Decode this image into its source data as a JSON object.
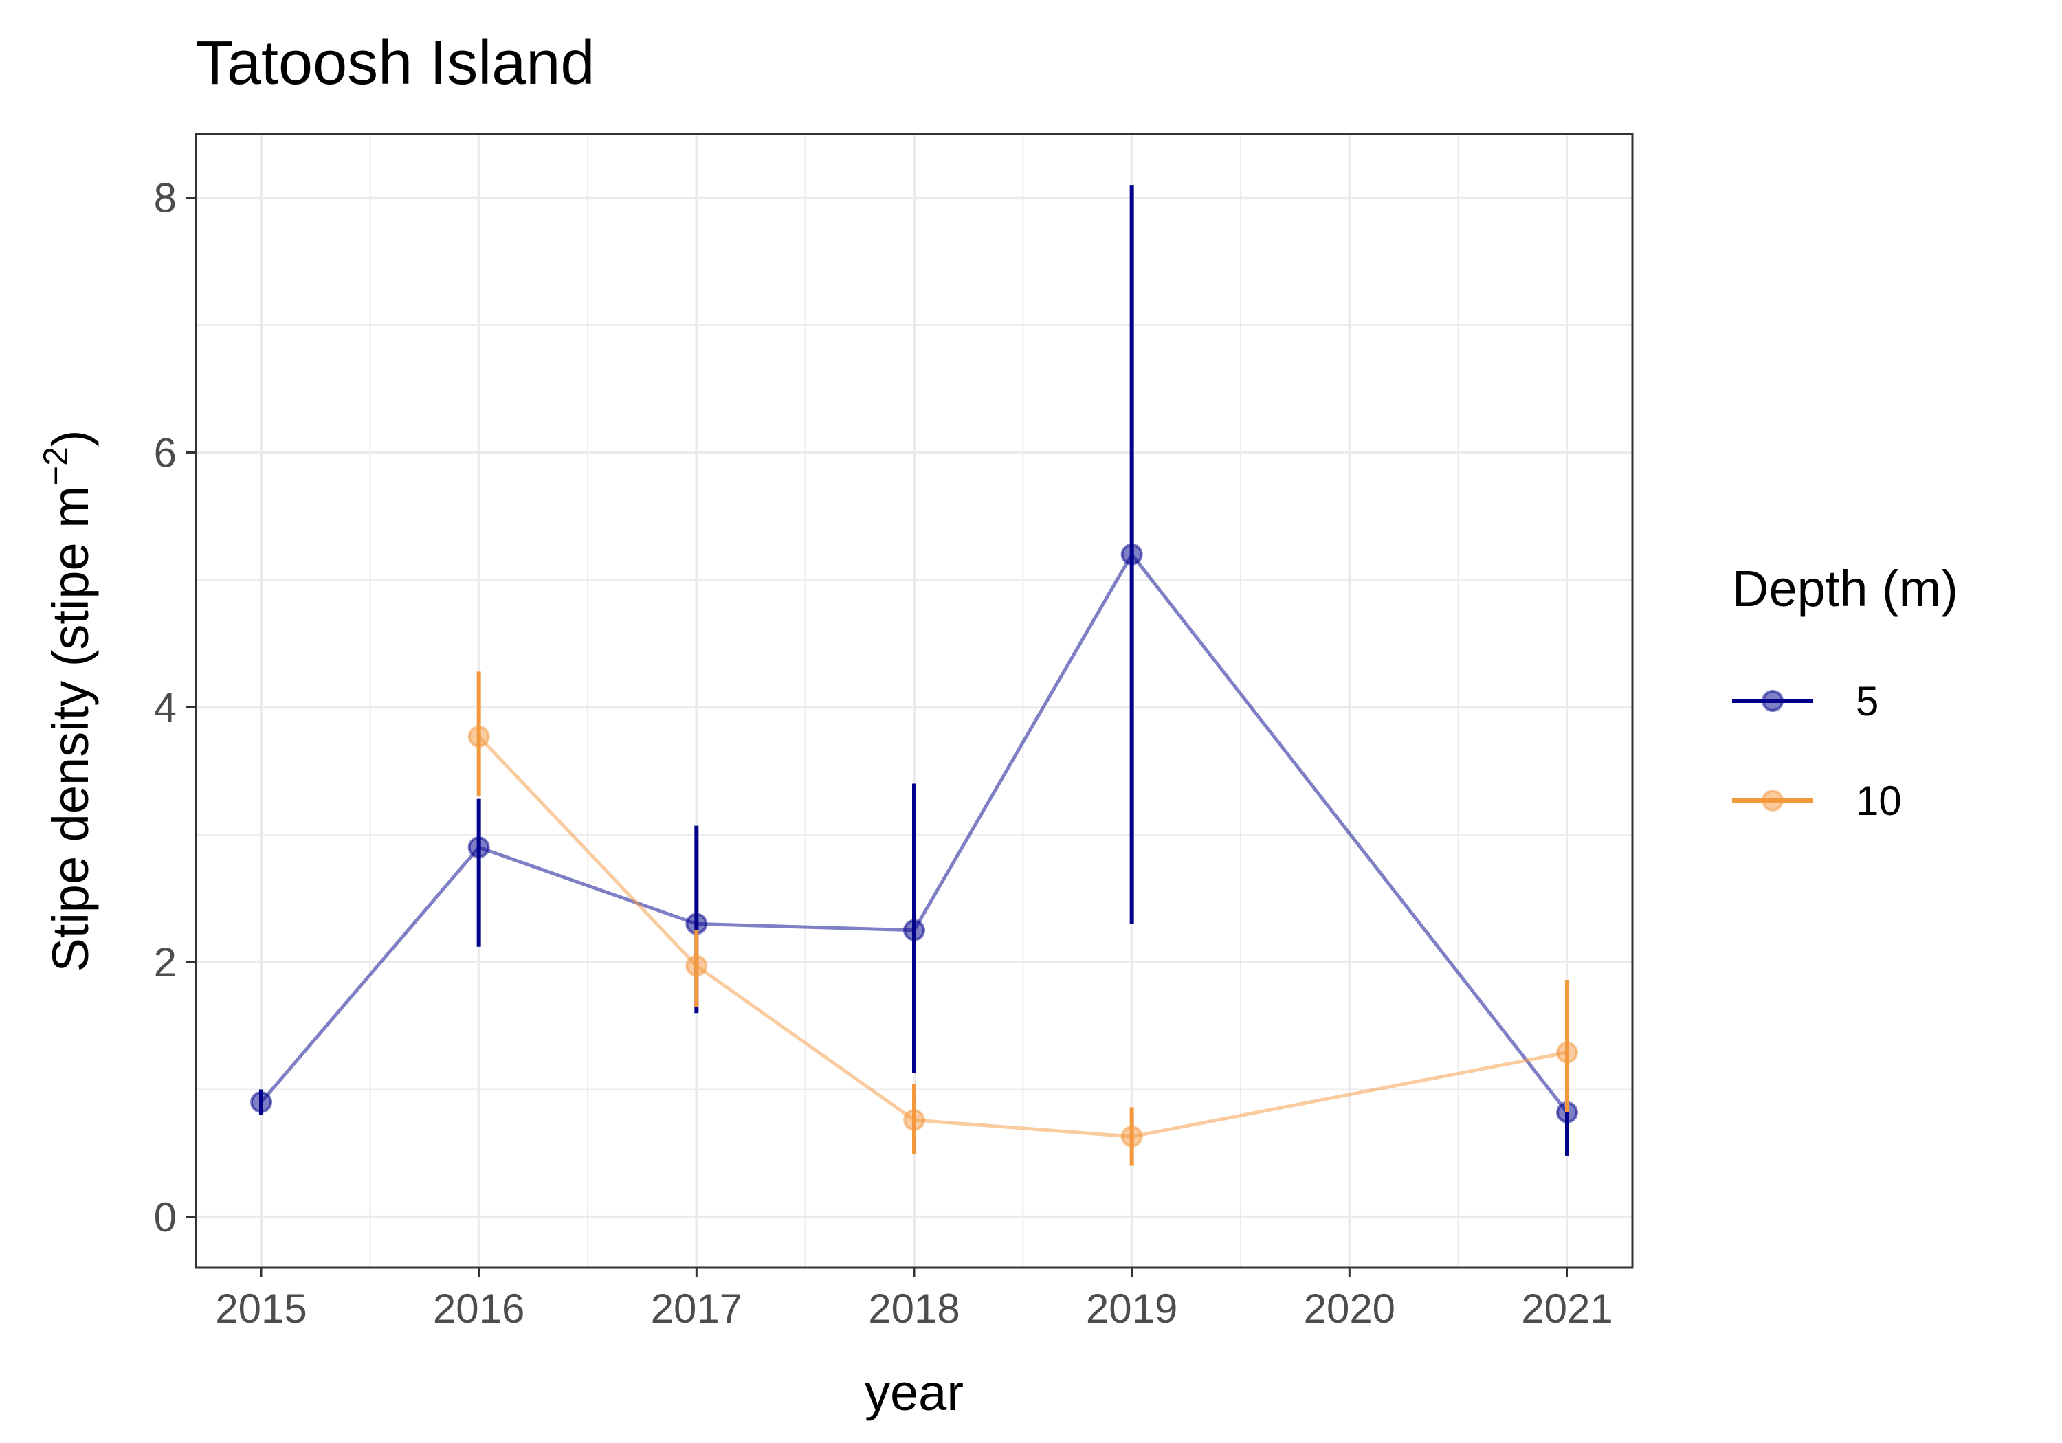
{
  "chart_data": {
    "type": "line",
    "title": "Tatoosh Island",
    "xlabel": "year",
    "ylabel": "Stipe density (stipe m",
    "ylabel_sup": "−2",
    "ylabel_close": ")",
    "xlim": [
      2014.7,
      2021.3
    ],
    "ylim": [
      -0.4,
      8.5
    ],
    "x_ticks": [
      2015,
      2016,
      2017,
      2018,
      2019,
      2020,
      2021
    ],
    "x_tick_labels": [
      "2015",
      "2016",
      "2017",
      "2018",
      "2019",
      "2020",
      "2021"
    ],
    "y_ticks": [
      0,
      2,
      4,
      6,
      8
    ],
    "y_tick_labels": [
      "0",
      "2",
      "4",
      "6",
      "8"
    ],
    "grid": true,
    "legend": {
      "title": "Depth (m)",
      "position": "right"
    },
    "series": [
      {
        "name": "5",
        "color": "#00008b",
        "x": [
          2015,
          2016,
          2017,
          2018,
          2019,
          2021
        ],
        "y": [
          0.9,
          2.9,
          2.3,
          2.25,
          5.2,
          0.82
        ],
        "y_lower": [
          0.8,
          2.12,
          1.6,
          1.13,
          2.3,
          0.48
        ],
        "y_upper": [
          1.0,
          3.28,
          3.07,
          3.4,
          8.1,
          1.15
        ]
      },
      {
        "name": "10",
        "color": "#f4983e",
        "x": [
          2016,
          2017,
          2018,
          2019,
          2021
        ],
        "y": [
          3.77,
          1.97,
          0.76,
          0.63,
          1.29
        ],
        "y_lower": [
          3.3,
          1.65,
          0.49,
          0.4,
          0.82
        ],
        "y_upper": [
          4.28,
          2.25,
          1.04,
          0.86,
          1.86
        ]
      }
    ]
  }
}
